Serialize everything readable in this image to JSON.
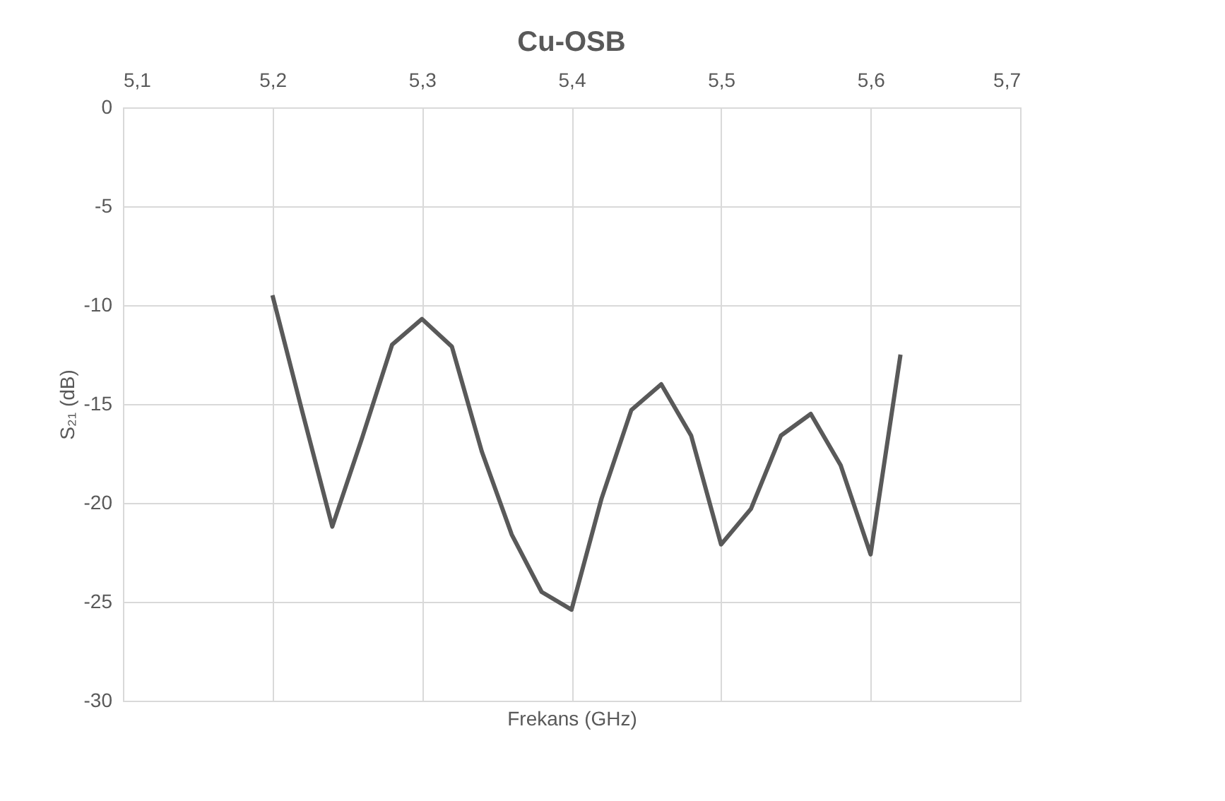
{
  "chart_data": {
    "type": "line",
    "title": "Cu-OSB",
    "xlabel": "Frekans (GHz)",
    "ylabel": "S₂₁ (dB)",
    "x": [
      5.2,
      5.22,
      5.24,
      5.26,
      5.28,
      5.3,
      5.32,
      5.34,
      5.36,
      5.38,
      5.4,
      5.42,
      5.44,
      5.46,
      5.48,
      5.5,
      5.52,
      5.54,
      5.56,
      5.58,
      5.6,
      5.62
    ],
    "series": [
      {
        "color": "#595959",
        "values": [
          -9.5,
          -15.4,
          -21.2,
          -16.7,
          -12.0,
          -10.7,
          -12.1,
          -17.4,
          -21.6,
          -24.5,
          -25.4,
          -19.8,
          -15.3,
          -14.0,
          -16.6,
          -22.1,
          -20.3,
          -16.6,
          -15.5,
          -18.1,
          -22.6,
          -12.5
        ]
      }
    ],
    "xlim": [
      5.1,
      5.7
    ],
    "xticks": [
      {
        "value": 5.1,
        "label": "5,1"
      },
      {
        "value": 5.2,
        "label": "5,2"
      },
      {
        "value": 5.3,
        "label": "5,3"
      },
      {
        "value": 5.4,
        "label": "5,4"
      },
      {
        "value": 5.5,
        "label": "5,5"
      },
      {
        "value": 5.6,
        "label": "5,6"
      },
      {
        "value": 5.7,
        "label": "5,7"
      }
    ],
    "ylim": [
      -30,
      0
    ],
    "yticks": [
      -30,
      -25,
      -20,
      -15,
      -10,
      -5,
      0
    ],
    "grid": true,
    "legend": false,
    "marker": "none",
    "line_style": "solid"
  }
}
